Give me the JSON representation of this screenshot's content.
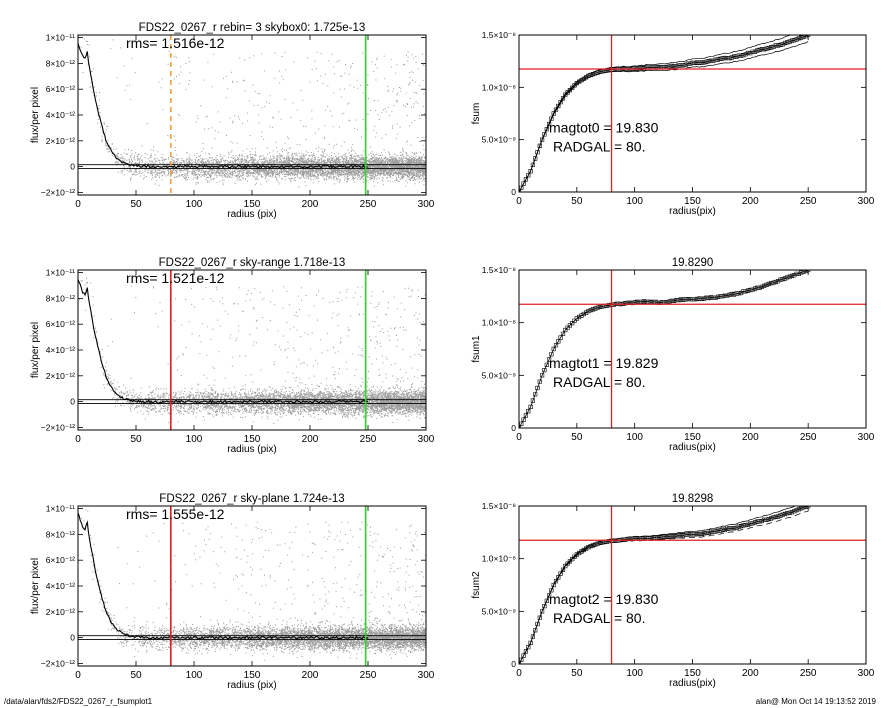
{
  "footer": {
    "path": "/data/alan/fds2/FDS22_0267_r_fsumplot1",
    "user_time": "alan@  Mon Oct 14 19:13:52 2019"
  },
  "colors": {
    "scatter_gray": "#9a9a9a",
    "profile": "#000000",
    "red": "#e02020",
    "green": "#22dd22",
    "orange": "#f0a040"
  },
  "chart_data": [
    {
      "type": "scatter",
      "title": "FDS22_0267_r rebin= 3    skybox0:  1.725e-13",
      "annotation": "rms= 1.516e-12",
      "xlabel": "radius (pix)",
      "ylabel": "flux/per pixel",
      "xlim": [
        0,
        300
      ],
      "ylim": [
        -2.2e-12,
        1.02e-11
      ],
      "xticks": [
        0,
        50,
        100,
        150,
        200,
        250,
        300
      ],
      "yticks": [
        {
          "value": 1e-11,
          "label": "1×10⁻¹¹"
        },
        {
          "value": 8e-12,
          "label": "8×10⁻¹²"
        },
        {
          "value": 6e-12,
          "label": "6×10⁻¹²"
        },
        {
          "value": 4e-12,
          "label": "4×10⁻¹²"
        },
        {
          "value": 2e-12,
          "label": "2×10⁻¹²"
        },
        {
          "value": 0,
          "label": "0"
        },
        {
          "value": -2e-12,
          "label": "−2×10⁻¹²"
        }
      ],
      "vlines": [
        {
          "x": 80,
          "color": "orange",
          "style": "dashed"
        },
        {
          "x": 248,
          "color": "green",
          "style": "solid"
        }
      ],
      "hlines": [
        1.5e-13,
        -1.5e-13
      ],
      "profile": {
        "x": [
          0,
          2,
          4,
          6,
          8,
          10,
          12,
          15,
          18,
          21,
          24,
          27,
          30,
          34,
          38,
          42,
          46,
          50,
          60,
          70,
          80,
          100,
          150,
          200,
          250
        ],
        "y": [
          9.6e-12,
          9e-12,
          8.6e-12,
          8.4e-12,
          8.9e-12,
          7.6e-12,
          6.6e-12,
          5.2e-12,
          4e-12,
          3e-12,
          2.1e-12,
          1.5e-12,
          1e-12,
          6e-13,
          3.5e-13,
          2e-13,
          1.2e-13,
          5e-14,
          0.0,
          -5e-14,
          0.0,
          0.0,
          0.0,
          0.0,
          0.0
        ]
      }
    },
    {
      "type": "line",
      "title": "",
      "annotation_line1": "magtot0 =  19.830",
      "annotation_line2": "RADGAL =     80.",
      "xlabel": "radius(pix)",
      "ylabel": "fsum",
      "xlim": [
        0,
        300
      ],
      "ylim": [
        0,
        1.5e-08
      ],
      "xticks": [
        0,
        50,
        100,
        150,
        200,
        250,
        300
      ],
      "yticks": [
        {
          "value": 1.5e-08,
          "label": "1.5×10⁻⁸"
        },
        {
          "value": 1e-08,
          "label": "1.0×10⁻⁸"
        },
        {
          "value": 5e-09,
          "label": "5.0×10⁻⁹"
        },
        {
          "value": 0,
          "label": "0"
        }
      ],
      "vline_x": 80,
      "hline_y": 1.175e-08,
      "curve": {
        "x": [
          0,
          10,
          20,
          30,
          40,
          50,
          60,
          70,
          80,
          90,
          100,
          110,
          120,
          130,
          140,
          150,
          160,
          170,
          180,
          190,
          200,
          210,
          220,
          230,
          240,
          250
        ],
        "y": [
          0,
          2e-09,
          5e-09,
          7.5e-09,
          9.3e-09,
          1.04e-08,
          1.11e-08,
          1.15e-08,
          1.17e-08,
          1.175e-08,
          1.18e-08,
          1.185e-08,
          1.19e-08,
          1.2e-08,
          1.21e-08,
          1.23e-08,
          1.24e-08,
          1.26e-08,
          1.28e-08,
          1.3e-08,
          1.33e-08,
          1.36e-08,
          1.39e-08,
          1.42e-08,
          1.46e-08,
          1.5e-08
        ]
      },
      "band": 4e-10
    },
    {
      "type": "scatter",
      "title": "FDS22_0267_r sky-range  1.718e-13",
      "annotation": "rms= 1.521e-12",
      "xlabel": "radius (pix)",
      "ylabel": "flux/per pixel",
      "xlim": [
        0,
        300
      ],
      "ylim": [
        -2.2e-12,
        1.02e-11
      ],
      "xticks": [
        0,
        50,
        100,
        150,
        200,
        250,
        300
      ],
      "yticks": [
        {
          "value": 1e-11,
          "label": "1×10⁻¹¹"
        },
        {
          "value": 8e-12,
          "label": "8×10⁻¹²"
        },
        {
          "value": 6e-12,
          "label": "6×10⁻¹²"
        },
        {
          "value": 4e-12,
          "label": "4×10⁻¹²"
        },
        {
          "value": 2e-12,
          "label": "2×10⁻¹²"
        },
        {
          "value": 0,
          "label": "0"
        },
        {
          "value": -2e-12,
          "label": "−2×10⁻¹²"
        }
      ],
      "vlines": [
        {
          "x": 80,
          "color": "red",
          "style": "solid"
        },
        {
          "x": 248,
          "color": "green",
          "style": "solid"
        }
      ],
      "hlines": [
        1.5e-13,
        -1.5e-13
      ],
      "profile": {
        "x": [
          0,
          2,
          4,
          6,
          8,
          10,
          12,
          15,
          18,
          21,
          24,
          27,
          30,
          34,
          38,
          42,
          46,
          50,
          60,
          70,
          80,
          100,
          150,
          200,
          250
        ],
        "y": [
          9.5e-12,
          9e-12,
          8.5e-12,
          8.3e-12,
          8.8e-12,
          7.5e-12,
          6.5e-12,
          5.1e-12,
          3.9e-12,
          2.9e-12,
          2e-12,
          1.4e-12,
          9e-13,
          5.5e-13,
          3e-13,
          1.8e-13,
          1e-13,
          3e-14,
          0.0,
          -5e-14,
          0.0,
          0.0,
          0.0,
          0.0,
          0.0
        ]
      }
    },
    {
      "type": "line",
      "title": "19.8290",
      "annotation_line1": "magtot1 =  19.829",
      "annotation_line2": "RADGAL =     80.",
      "xlabel": "radius(pix)",
      "ylabel": "fsum1",
      "xlim": [
        0,
        300
      ],
      "ylim": [
        0,
        1.5e-08
      ],
      "xticks": [
        0,
        50,
        100,
        150,
        200,
        250,
        300
      ],
      "yticks": [
        {
          "value": 1.5e-08,
          "label": "1.5×10⁻⁸"
        },
        {
          "value": 1e-08,
          "label": "1.0×10⁻⁸"
        },
        {
          "value": 5e-09,
          "label": "5.0×10⁻⁹"
        },
        {
          "value": 0,
          "label": "0"
        }
      ],
      "vline_x": 80,
      "hline_y": 1.175e-08,
      "curve": {
        "x": [
          0,
          10,
          20,
          30,
          40,
          50,
          60,
          70,
          80,
          90,
          100,
          110,
          120,
          130,
          140,
          150,
          160,
          170,
          180,
          190,
          200,
          210,
          220,
          230,
          240,
          250
        ],
        "y": [
          0,
          2e-09,
          5e-09,
          7.5e-09,
          9.3e-09,
          1.04e-08,
          1.11e-08,
          1.15e-08,
          1.17e-08,
          1.18e-08,
          1.19e-08,
          1.2e-08,
          1.19e-08,
          1.2e-08,
          1.22e-08,
          1.22e-08,
          1.23e-08,
          1.24e-08,
          1.26e-08,
          1.28e-08,
          1.31e-08,
          1.34e-08,
          1.38e-08,
          1.42e-08,
          1.46e-08,
          1.5e-08
        ]
      },
      "band": 0.0
    },
    {
      "type": "scatter",
      "title": "FDS22_0267_r sky-plane  1.724e-13",
      "annotation": "rms= 1.555e-12",
      "xlabel": "radius (pix)",
      "ylabel": "flux/per pixel",
      "xlim": [
        0,
        300
      ],
      "ylim": [
        -2.2e-12,
        1.02e-11
      ],
      "xticks": [
        0,
        50,
        100,
        150,
        200,
        250,
        300
      ],
      "yticks": [
        {
          "value": 1e-11,
          "label": "1×10⁻¹¹"
        },
        {
          "value": 8e-12,
          "label": "8×10⁻¹²"
        },
        {
          "value": 6e-12,
          "label": "6×10⁻¹²"
        },
        {
          "value": 4e-12,
          "label": "4×10⁻¹²"
        },
        {
          "value": 2e-12,
          "label": "2×10⁻¹²"
        },
        {
          "value": 0,
          "label": "0"
        },
        {
          "value": -2e-12,
          "label": "−2×10⁻¹²"
        }
      ],
      "vlines": [
        {
          "x": 80,
          "color": "red",
          "style": "solid"
        },
        {
          "x": 248,
          "color": "green",
          "style": "solid"
        }
      ],
      "hlines": [
        1.5e-13,
        -1.5e-13
      ],
      "profile": {
        "x": [
          0,
          2,
          4,
          6,
          8,
          10,
          12,
          15,
          18,
          21,
          24,
          27,
          30,
          34,
          38,
          42,
          46,
          50,
          60,
          70,
          80,
          100,
          150,
          200,
          250
        ],
        "y": [
          9.7e-12,
          9.1e-12,
          8.6e-12,
          8.4e-12,
          8.9e-12,
          7.6e-12,
          6.6e-12,
          5.2e-12,
          4e-12,
          3e-12,
          2.1e-12,
          1.5e-12,
          1e-12,
          6e-13,
          3.5e-13,
          2e-13,
          1.2e-13,
          5e-14,
          0.0,
          -5e-14,
          0.0,
          0.0,
          0.0,
          0.0,
          0.0
        ]
      }
    },
    {
      "type": "line",
      "title": "19.8298",
      "annotation_line1": "magtot2 =  19.830",
      "annotation_line2": "RADGAL =     80.",
      "xlabel": "radius(pix)",
      "ylabel": "fsum2",
      "xlim": [
        0,
        300
      ],
      "ylim": [
        0,
        1.5e-08
      ],
      "xticks": [
        0,
        50,
        100,
        150,
        200,
        250,
        300
      ],
      "yticks": [
        {
          "value": 1.5e-08,
          "label": "1.5×10⁻⁸"
        },
        {
          "value": 1e-08,
          "label": "1.0×10⁻⁸"
        },
        {
          "value": 5e-09,
          "label": "5.0×10⁻⁹"
        },
        {
          "value": 0,
          "label": "0"
        }
      ],
      "vline_x": 80,
      "hline_y": 1.175e-08,
      "curve": {
        "x": [
          0,
          10,
          20,
          30,
          40,
          50,
          60,
          70,
          80,
          90,
          100,
          110,
          120,
          130,
          140,
          150,
          160,
          170,
          180,
          190,
          200,
          210,
          220,
          230,
          240,
          250
        ],
        "y": [
          0,
          2e-09,
          5e-09,
          7.5e-09,
          9.3e-09,
          1.04e-08,
          1.11e-08,
          1.15e-08,
          1.17e-08,
          1.18e-08,
          1.19e-08,
          1.19e-08,
          1.2e-08,
          1.21e-08,
          1.22e-08,
          1.23e-08,
          1.24e-08,
          1.26e-08,
          1.28e-08,
          1.3e-08,
          1.33e-08,
          1.36e-08,
          1.39e-08,
          1.42e-08,
          1.46e-08,
          1.5e-08
        ]
      },
      "band": 3e-10
    }
  ]
}
